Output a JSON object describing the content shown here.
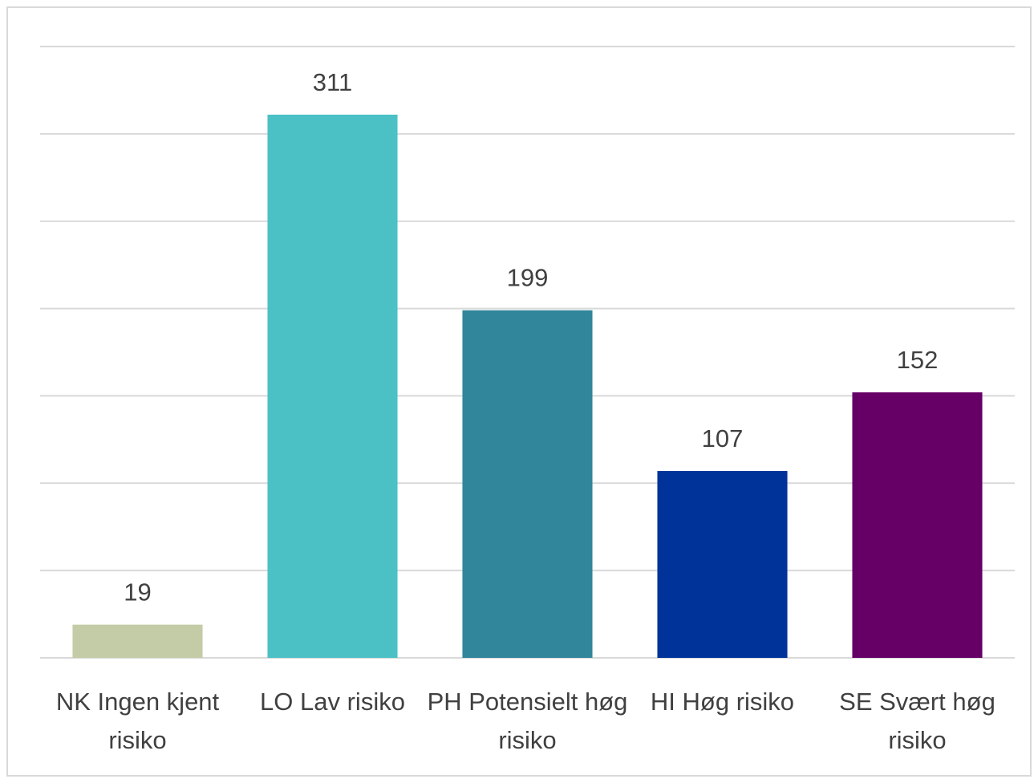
{
  "chart_data": {
    "type": "bar",
    "categories": [
      [
        "NK Ingen kjent",
        "risiko"
      ],
      [
        "LO Lav risiko"
      ],
      [
        "PH Potensielt høg",
        "risiko"
      ],
      [
        "HI Høg risiko"
      ],
      [
        "SE Svært høg",
        "risiko"
      ]
    ],
    "values": [
      19,
      311,
      199,
      107,
      152
    ],
    "colors": [
      "#c3cca6",
      "#4bc1c6",
      "#31869b",
      "#003399",
      "#660066"
    ],
    "data_labels": [
      "19",
      "311",
      "199",
      "107",
      "152"
    ],
    "title": "",
    "xlabel": "",
    "ylabel": "",
    "ylim": [
      0,
      350
    ],
    "y_gridlines": [
      0,
      50,
      100,
      150,
      200,
      250,
      300,
      350
    ],
    "grid": true,
    "legend": "none"
  }
}
